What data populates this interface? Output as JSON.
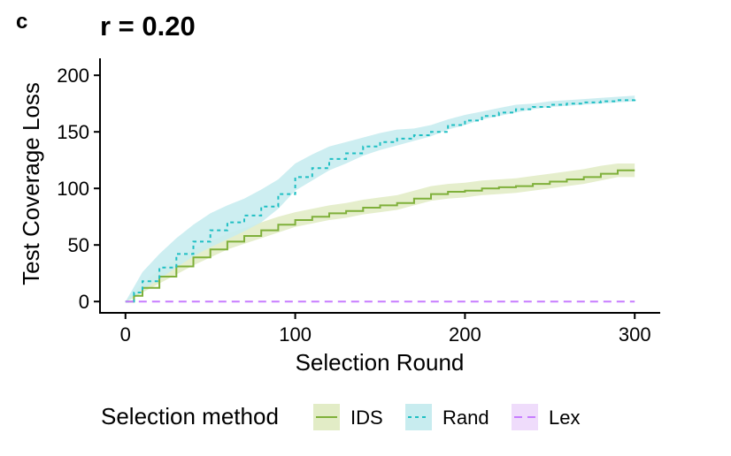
{
  "panel_tag": "c",
  "chart_data": {
    "type": "line",
    "title": "r = 0.20",
    "xlabel": "Selection Round",
    "ylabel": "Test Coverage Loss",
    "xlim": [
      -15,
      315
    ],
    "ylim": [
      -10,
      215
    ],
    "xticks": [
      0,
      100,
      200,
      300
    ],
    "yticks": [
      0,
      50,
      100,
      150,
      200
    ],
    "grid": false,
    "legend": {
      "title": "Selection method",
      "position": "bottom"
    },
    "series": [
      {
        "name": "IDS",
        "line_style": "solid",
        "color": "#7fb03a",
        "band_color": "#e2ecc6",
        "x": [
          0,
          5,
          10,
          20,
          30,
          40,
          50,
          60,
          70,
          80,
          90,
          100,
          110,
          120,
          130,
          140,
          150,
          160,
          170,
          180,
          190,
          200,
          210,
          220,
          230,
          240,
          250,
          260,
          270,
          280,
          290,
          300
        ],
        "y": [
          0,
          5,
          12,
          22,
          31,
          39,
          46,
          53,
          58,
          63,
          68,
          72,
          75,
          78,
          80,
          83,
          85,
          87,
          91,
          95,
          97,
          98,
          100,
          101,
          102,
          104,
          106,
          108,
          110,
          113,
          116,
          116
        ],
        "lower": [
          0,
          3,
          8,
          16,
          24,
          32,
          39,
          46,
          51,
          56,
          61,
          66,
          69,
          72,
          74,
          77,
          79,
          81,
          85,
          89,
          91,
          92,
          94,
          95,
          96,
          98,
          100,
          102,
          104,
          107,
          110,
          110
        ],
        "upper": [
          0,
          8,
          16,
          28,
          38,
          46,
          53,
          60,
          65,
          70,
          75,
          79,
          82,
          85,
          87,
          90,
          92,
          94,
          98,
          102,
          104,
          105,
          107,
          108,
          109,
          111,
          113,
          115,
          117,
          120,
          122,
          122
        ]
      },
      {
        "name": "Rand",
        "line_style": "dotted",
        "color": "#1fbfc3",
        "band_color": "#c8ecef",
        "x": [
          0,
          5,
          10,
          20,
          30,
          40,
          50,
          60,
          70,
          80,
          90,
          100,
          110,
          120,
          130,
          140,
          150,
          160,
          170,
          180,
          190,
          200,
          210,
          220,
          230,
          240,
          250,
          260,
          270,
          280,
          290,
          300
        ],
        "y": [
          0,
          8,
          18,
          30,
          42,
          53,
          63,
          70,
          76,
          84,
          95,
          110,
          118,
          126,
          131,
          137,
          141,
          144,
          147,
          150,
          156,
          160,
          164,
          167,
          170,
          172,
          174,
          175,
          176,
          177,
          178,
          179
        ],
        "lower": [
          0,
          4,
          10,
          20,
          30,
          40,
          48,
          55,
          62,
          70,
          82,
          98,
          107,
          116,
          122,
          129,
          134,
          138,
          142,
          146,
          152,
          156,
          161,
          164,
          167,
          170,
          172,
          173,
          174,
          175,
          176,
          177
        ],
        "upper": [
          0,
          13,
          26,
          42,
          56,
          68,
          78,
          85,
          91,
          99,
          108,
          122,
          130,
          137,
          141,
          145,
          149,
          152,
          153,
          156,
          161,
          165,
          168,
          171,
          174,
          175,
          177,
          178,
          179,
          180,
          181,
          182
        ]
      },
      {
        "name": "Lex",
        "line_style": "dashed",
        "color": "#c77cff",
        "band_color": "#efdcfb",
        "x": [
          0,
          300
        ],
        "y": [
          0,
          0
        ]
      }
    ]
  }
}
